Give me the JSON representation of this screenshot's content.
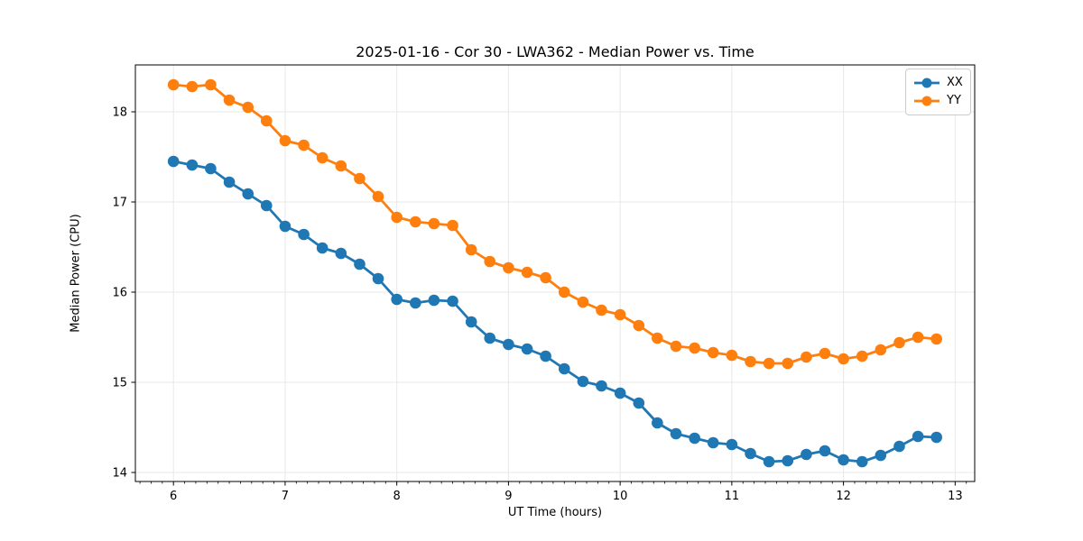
{
  "figure": {
    "background": "#ffffff"
  },
  "chart_data": {
    "type": "line",
    "title": "2025-01-16 - Cor 30 - LWA362 - Median Power vs. Time",
    "xlabel": "UT Time (hours)",
    "ylabel": "Median Power (CPU)",
    "xlim": [
      5.659,
      13.175
    ],
    "ylim": [
      13.9,
      18.52
    ],
    "xticks": [
      6,
      7,
      8,
      9,
      10,
      11,
      12,
      13
    ],
    "yticks": [
      14,
      15,
      16,
      17,
      18
    ],
    "minor_xtick_step": 0.1,
    "grid": true,
    "grid_color": "#e8e8e8",
    "spine_color": "#000000",
    "legend_position": "upper right",
    "x": [
      6.0,
      6.167,
      6.333,
      6.5,
      6.667,
      6.833,
      7.0,
      7.167,
      7.333,
      7.5,
      7.667,
      7.833,
      8.0,
      8.167,
      8.333,
      8.5,
      8.667,
      8.833,
      9.0,
      9.167,
      9.333,
      9.5,
      9.667,
      9.833,
      10.0,
      10.167,
      10.333,
      10.5,
      10.667,
      10.833,
      11.0,
      11.167,
      11.333,
      11.5,
      11.667,
      11.833,
      12.0,
      12.167,
      12.333,
      12.5,
      12.667,
      12.833
    ],
    "series": [
      {
        "name": "XX",
        "color": "#1f77b4",
        "values": [
          17.45,
          17.41,
          17.37,
          17.22,
          17.09,
          16.96,
          16.73,
          16.64,
          16.49,
          16.43,
          16.31,
          16.15,
          15.92,
          15.88,
          15.91,
          15.9,
          15.67,
          15.49,
          15.42,
          15.37,
          15.29,
          15.15,
          15.01,
          14.96,
          14.88,
          14.77,
          14.55,
          14.43,
          14.38,
          14.33,
          14.31,
          14.21,
          14.12,
          14.13,
          14.2,
          14.24,
          14.14,
          14.12,
          14.19,
          14.29,
          14.4,
          14.39
        ]
      },
      {
        "name": "YY",
        "color": "#ff7f0e",
        "values": [
          18.3,
          18.28,
          18.3,
          18.13,
          18.05,
          17.9,
          17.68,
          17.63,
          17.49,
          17.4,
          17.26,
          17.06,
          16.83,
          16.78,
          16.76,
          16.74,
          16.47,
          16.34,
          16.27,
          16.22,
          16.16,
          16.0,
          15.89,
          15.8,
          15.75,
          15.63,
          15.49,
          15.4,
          15.38,
          15.33,
          15.3,
          15.23,
          15.21,
          15.21,
          15.28,
          15.32,
          15.26,
          15.29,
          15.36,
          15.44,
          15.5,
          15.48
        ]
      }
    ]
  }
}
